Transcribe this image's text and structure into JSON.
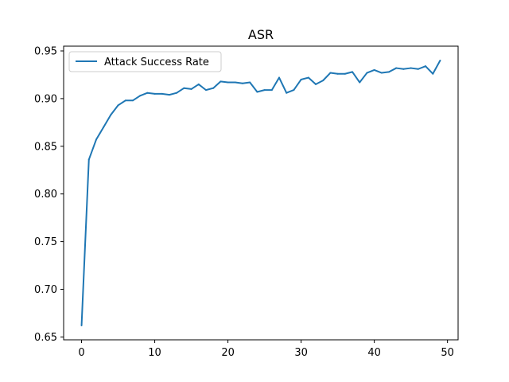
{
  "chart_data": {
    "type": "line",
    "title": "ASR",
    "xlabel": "",
    "ylabel": "",
    "xlim": [
      -2.45,
      51.45
    ],
    "ylim": [
      0.647,
      0.955
    ],
    "xticks": [
      0,
      10,
      20,
      30,
      40,
      50
    ],
    "yticks": [
      0.65,
      0.7,
      0.75,
      0.8,
      0.85,
      0.9,
      0.95
    ],
    "xtick_labels": [
      "0",
      "10",
      "20",
      "30",
      "40",
      "50"
    ],
    "ytick_labels": [
      "0.65",
      "0.70",
      "0.75",
      "0.80",
      "0.85",
      "0.90",
      "0.95"
    ],
    "grid": false,
    "legend_position": "upper-left",
    "series": [
      {
        "name": "Attack Success Rate",
        "color": "#1f77b4",
        "x": [
          0,
          1,
          2,
          3,
          4,
          5,
          6,
          7,
          8,
          9,
          10,
          11,
          12,
          13,
          14,
          15,
          16,
          17,
          18,
          19,
          20,
          21,
          22,
          23,
          24,
          25,
          26,
          27,
          28,
          29,
          30,
          31,
          32,
          33,
          34,
          35,
          36,
          37,
          38,
          39,
          40,
          41,
          42,
          43,
          44,
          45,
          46,
          47,
          48,
          49
        ],
        "y": [
          0.662,
          0.836,
          0.857,
          0.87,
          0.883,
          0.893,
          0.898,
          0.898,
          0.903,
          0.906,
          0.905,
          0.905,
          0.904,
          0.906,
          0.911,
          0.91,
          0.915,
          0.909,
          0.911,
          0.918,
          0.917,
          0.917,
          0.916,
          0.917,
          0.907,
          0.909,
          0.909,
          0.922,
          0.906,
          0.909,
          0.92,
          0.922,
          0.915,
          0.919,
          0.927,
          0.926,
          0.926,
          0.928,
          0.917,
          0.927,
          0.93,
          0.927,
          0.928,
          0.932,
          0.931,
          0.932,
          0.931,
          0.934,
          0.926,
          0.94
        ]
      }
    ]
  }
}
